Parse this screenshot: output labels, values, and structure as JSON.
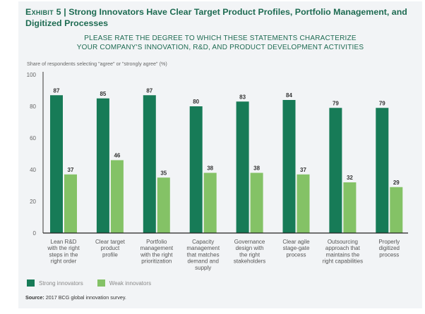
{
  "title": {
    "exhibit": "Exhibit 5",
    "separator": "|",
    "text": "Strong Innovators Have Clear Target Product Profiles, Portfolio Management, and Digitized Processes"
  },
  "subtitle": {
    "line1": "PLEASE RATE THE DEGREE TO WHICH THESE STATEMENTS CHARACTERIZE",
    "line2": "YOUR COMPANY'S INNOVATION, R&D, AND PRODUCT DEVELOPMENT ACTIVITIES"
  },
  "axis_note": "Share of respondents selecting \"agree\" or \"strongly agree\" (%)",
  "colors": {
    "strong": "#177b57",
    "weak": "#84c266",
    "title": "#1e6b52"
  },
  "chart_data": {
    "type": "bar",
    "title": "Strong Innovators Have Clear Target Product Profiles, Portfolio Management, and Digitized Processes",
    "ylabel": "Share of respondents selecting \"agree\" or \"strongly agree\" (%)",
    "xlabel": "",
    "ylim": [
      0,
      100
    ],
    "yticks": [
      0,
      20,
      40,
      60,
      80,
      100
    ],
    "grid": false,
    "legend_position": "bottom-left",
    "categories": [
      [
        "Lean R&D",
        "with the right",
        "steps in the",
        "right order"
      ],
      [
        "Clear target",
        "product",
        "profile"
      ],
      [
        "Portfolio",
        "management",
        "with the right",
        "prioritization"
      ],
      [
        "Capacity",
        "management",
        "that matches",
        "demand and",
        "supply"
      ],
      [
        "Governance",
        "design with",
        "the right",
        "stakeholders"
      ],
      [
        "Clear agile",
        "stage-gate",
        "process"
      ],
      [
        "Outsourcing",
        "approach that",
        "maintains the",
        "right capabilities"
      ],
      [
        "Properly",
        "digitized",
        "process"
      ]
    ],
    "series": [
      {
        "name": "Strong innovators",
        "values": [
          87,
          85,
          87,
          80,
          83,
          84,
          79,
          79
        ]
      },
      {
        "name": "Weak innovators",
        "values": [
          37,
          46,
          35,
          38,
          38,
          37,
          32,
          29
        ]
      }
    ]
  },
  "source": {
    "label": "Source:",
    "text": "2017 BCG global innovation survey."
  }
}
